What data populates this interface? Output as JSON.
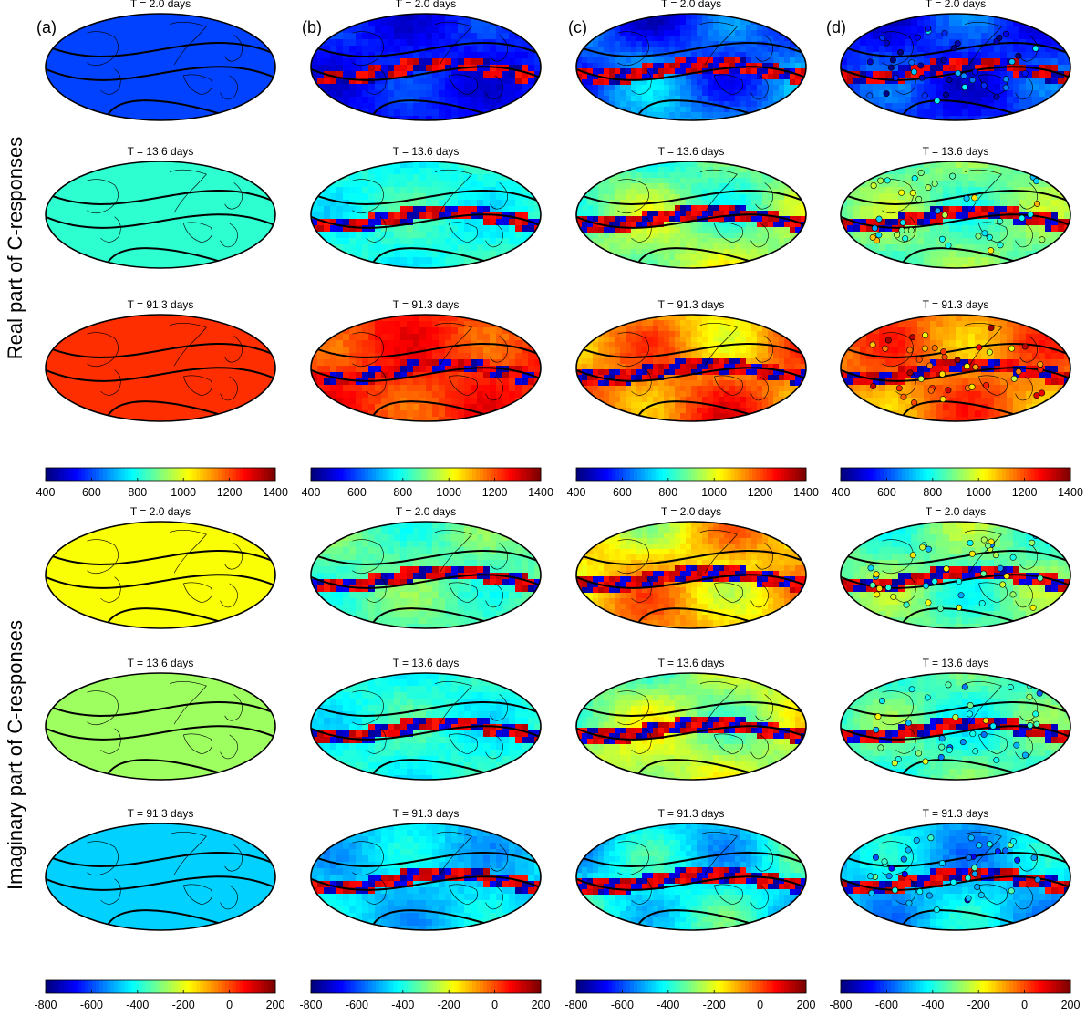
{
  "figure": {
    "column_labels": [
      "(a)",
      "(b)",
      "(c)",
      "(d)"
    ],
    "row_labels": [
      "Real part of C-responses",
      "Imaginary part of C-responses"
    ],
    "panel_titles": [
      "T =  2.0 days",
      "T = 13.6 days",
      "T = 91.3 days"
    ],
    "colormap": "jet"
  },
  "chart_data": [
    {
      "type": "heatmap",
      "group": "real",
      "ylabel": "Real part of C-responses",
      "columns": [
        "(a)",
        "(b)",
        "(c)",
        "(d)"
      ],
      "periods": [
        "T =  2.0 days",
        "T = 13.6 days",
        "T = 91.3 days"
      ],
      "colorbar": {
        "range": [
          400,
          1400
        ],
        "ticks": [
          400,
          600,
          800,
          1000,
          1200,
          1400
        ]
      },
      "panels": {
        "(a)": {
          "base_values": [
            590,
            820,
            1230
          ],
          "markers": false
        },
        "(b)": {
          "base_values": [
            540,
            800,
            1230
          ],
          "markers": false
        },
        "(c)": {
          "base_values": [
            620,
            900,
            1150
          ],
          "markers": false
        },
        "(d)": {
          "base_values": [
            560,
            880,
            1160
          ],
          "markers": true
        }
      }
    },
    {
      "type": "heatmap",
      "group": "imaginary",
      "ylabel": "Imaginary part of C-responses",
      "columns": [
        "(a)",
        "(b)",
        "(c)",
        "(d)"
      ],
      "periods": [
        "T =  2.0 days",
        "T = 13.6 days",
        "T = 91.3 days"
      ],
      "colorbar": {
        "range": [
          -800,
          200
        ],
        "ticks": [
          -800,
          -600,
          -400,
          -200,
          0,
          200
        ]
      },
      "panels": {
        "(a)": {
          "base_values": [
            -180,
            -270,
            -470
          ],
          "markers": false
        },
        "(b)": {
          "base_values": [
            -340,
            -400,
            -470
          ],
          "markers": false
        },
        "(c)": {
          "base_values": [
            -120,
            -260,
            -430
          ],
          "markers": false
        },
        "(d)": {
          "base_values": [
            -330,
            -360,
            -480
          ],
          "markers": true
        }
      }
    }
  ]
}
